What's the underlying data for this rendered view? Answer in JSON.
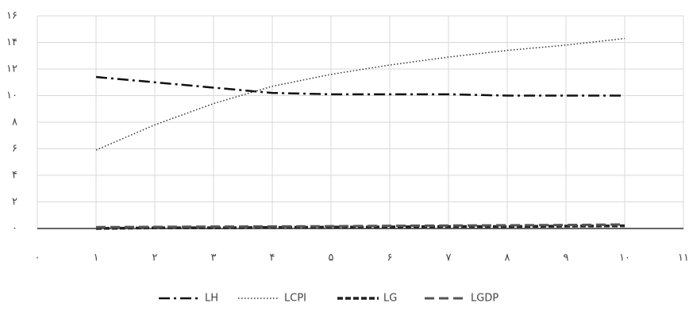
{
  "chart_data": {
    "type": "line",
    "x": [
      1,
      2,
      3,
      4,
      5,
      6,
      7,
      8,
      9,
      10
    ],
    "series": [
      {
        "name": "LH",
        "color": "#111111",
        "values": [
          11.4,
          11.0,
          10.6,
          10.2,
          10.1,
          10.1,
          10.1,
          10.0,
          10.0,
          10.0
        ]
      },
      {
        "name": "LCPI",
        "color": "#333333",
        "values": [
          5.9,
          7.8,
          9.4,
          10.7,
          11.6,
          12.3,
          12.9,
          13.4,
          13.8,
          14.3
        ]
      },
      {
        "name": "LG",
        "color": "#222222",
        "values": [
          0.0,
          0.05,
          0.05,
          0.08,
          0.1,
          0.12,
          0.15,
          0.15,
          0.18,
          0.2
        ]
      },
      {
        "name": "LGDP",
        "color": "#555555",
        "values": [
          0.1,
          0.12,
          0.14,
          0.15,
          0.17,
          0.2,
          0.22,
          0.24,
          0.26,
          0.3
        ]
      }
    ],
    "xlim": [
      0,
      11
    ],
    "xticks": [
      {
        "value": 0,
        "label": "۰"
      },
      {
        "value": 1,
        "label": "۱"
      },
      {
        "value": 2,
        "label": "۲"
      },
      {
        "value": 3,
        "label": "۳"
      },
      {
        "value": 4,
        "label": "۴"
      },
      {
        "value": 5,
        "label": "۵"
      },
      {
        "value": 6,
        "label": "۶"
      },
      {
        "value": 7,
        "label": "۷"
      },
      {
        "value": 8,
        "label": "۸"
      },
      {
        "value": 9,
        "label": "۹"
      },
      {
        "value": 10,
        "label": "۱۰"
      },
      {
        "value": 11,
        "label": "۱۱"
      }
    ],
    "ylim": [
      0,
      16
    ],
    "yticks": [
      {
        "value": 0,
        "label": "۰"
      },
      {
        "value": 2,
        "label": "۲"
      },
      {
        "value": 4,
        "label": "۴"
      },
      {
        "value": 6,
        "label": "۶"
      },
      {
        "value": 8,
        "label": "۸"
      },
      {
        "value": 10,
        "label": "۱۰"
      },
      {
        "value": 12,
        "label": "۱۲"
      },
      {
        "value": 14,
        "label": "۱۴"
      },
      {
        "value": 16,
        "label": "۱۶"
      }
    ],
    "grid": true
  }
}
